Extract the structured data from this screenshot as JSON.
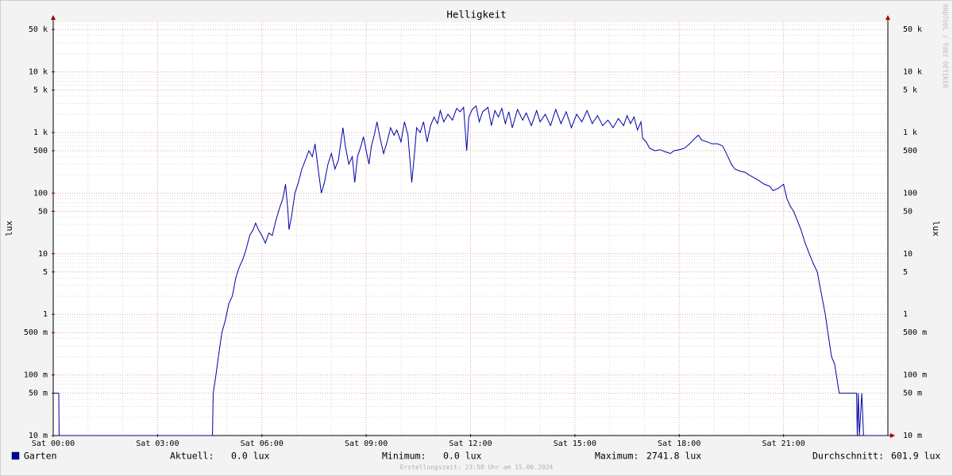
{
  "chart_data": {
    "type": "line",
    "title": "Helligkeit",
    "y_label": "lux",
    "log_y": true,
    "grid": true,
    "watermark": "RRDTOOL / TOBI OETIKER",
    "footer": "Erstellungszeit: 23:58 Uhr am 15.06.2024",
    "xlim": [
      0,
      24
    ],
    "xticks": [
      {
        "value": 0,
        "label": "Sat 00:00"
      },
      {
        "value": 3,
        "label": "Sat 03:00"
      },
      {
        "value": 6,
        "label": "Sat 06:00"
      },
      {
        "value": 9,
        "label": "Sat 09:00"
      },
      {
        "value": 12,
        "label": "Sat 12:00"
      },
      {
        "value": 15,
        "label": "Sat 15:00"
      },
      {
        "value": 18,
        "label": "Sat 18:00"
      },
      {
        "value": 21,
        "label": "Sat 21:00"
      }
    ],
    "minor_xticks": [
      1,
      2,
      4,
      5,
      7,
      8,
      10,
      11,
      13,
      14,
      16,
      17,
      19,
      20,
      22,
      23
    ],
    "ylim": [
      0.01,
      66000
    ],
    "yticks": [
      {
        "value": 0.01,
        "label": "10 m"
      },
      {
        "value": 0.05,
        "label": "50 m"
      },
      {
        "value": 0.1,
        "label": "100 m"
      },
      {
        "value": 0.5,
        "label": "500 m"
      },
      1,
      5,
      10,
      50,
      100,
      500,
      {
        "value": 1000,
        "label": "1 k"
      },
      {
        "value": 5000,
        "label": "5 k"
      },
      {
        "value": 10000,
        "label": "10 k"
      },
      {
        "value": 50000,
        "label": "50 k"
      }
    ],
    "minor_yticks": [
      0.02,
      0.03,
      0.04,
      0.06,
      0.07,
      0.08,
      0.09,
      0.2,
      0.3,
      0.4,
      0.6,
      0.7,
      0.8,
      0.9,
      2,
      3,
      4,
      6,
      7,
      8,
      9,
      20,
      30,
      40,
      60,
      70,
      80,
      90,
      200,
      300,
      400,
      600,
      700,
      800,
      900,
      2000,
      3000,
      4000,
      6000,
      7000,
      8000,
      9000,
      20000,
      30000,
      40000,
      60000
    ],
    "x": [
      0,
      0.16,
      0.17,
      4.58,
      4.6,
      4.68,
      4.75,
      4.85,
      4.95,
      5.05,
      5.15,
      5.25,
      5.35,
      5.45,
      5.55,
      5.65,
      5.75,
      5.82,
      5.9,
      6.0,
      6.1,
      6.2,
      6.3,
      6.4,
      6.5,
      6.6,
      6.68,
      6.75,
      6.78,
      6.85,
      6.95,
      7.05,
      7.15,
      7.25,
      7.35,
      7.45,
      7.53,
      7.6,
      7.71,
      7.8,
      7.9,
      8.0,
      8.1,
      8.2,
      8.33,
      8.4,
      8.5,
      8.6,
      8.67,
      8.75,
      8.85,
      8.92,
      9.0,
      9.08,
      9.15,
      9.23,
      9.31,
      9.4,
      9.5,
      9.6,
      9.7,
      9.8,
      9.88,
      10.0,
      10.1,
      10.2,
      10.31,
      10.38,
      10.45,
      10.55,
      10.65,
      10.75,
      10.85,
      10.95,
      11.05,
      11.13,
      11.23,
      11.35,
      11.48,
      11.6,
      11.7,
      11.8,
      11.89,
      11.95,
      12.05,
      12.16,
      12.25,
      12.35,
      12.5,
      12.6,
      12.7,
      12.8,
      12.9,
      13.0,
      13.1,
      13.2,
      13.35,
      13.5,
      13.6,
      13.75,
      13.9,
      14.0,
      14.15,
      14.3,
      14.45,
      14.6,
      14.75,
      14.9,
      15.05,
      15.2,
      15.35,
      15.5,
      15.65,
      15.8,
      15.95,
      16.1,
      16.25,
      16.4,
      16.5,
      16.6,
      16.7,
      16.8,
      16.9,
      16.95,
      17.05,
      17.15,
      17.3,
      17.45,
      17.6,
      17.75,
      17.85,
      18.0,
      18.15,
      18.3,
      18.45,
      18.55,
      18.65,
      18.8,
      18.95,
      19.1,
      19.25,
      19.4,
      19.5,
      19.6,
      19.75,
      19.9,
      20.0,
      20.15,
      20.3,
      20.45,
      20.6,
      20.7,
      20.85,
      21.0,
      21.1,
      21.2,
      21.29,
      21.4,
      21.5,
      21.62,
      21.74,
      21.85,
      21.97,
      22.1,
      22.2,
      22.3,
      22.38,
      22.47,
      22.6,
      23.1,
      23.12,
      23.15,
      23.18,
      23.25,
      23.3,
      24
    ],
    "series": [
      {
        "name": "Garten",
        "color": "#0000a8",
        "values": [
          0.05,
          0.05,
          0,
          0,
          0.05,
          0.1,
          0.2,
          0.5,
          0.8,
          1.5,
          2,
          4,
          6,
          8,
          12,
          20,
          25,
          32,
          25,
          20,
          15,
          22,
          20,
          35,
          55,
          80,
          140,
          50,
          25,
          40,
          100,
          150,
          250,
          350,
          500,
          400,
          650,
          300,
          100,
          150,
          300,
          450,
          250,
          350,
          1200,
          600,
          300,
          400,
          150,
          400,
          600,
          850,
          500,
          300,
          600,
          900,
          1500,
          800,
          450,
          700,
          1200,
          900,
          1100,
          700,
          1500,
          900,
          150,
          400,
          1200,
          1000,
          1500,
          700,
          1300,
          1800,
          1400,
          2300,
          1500,
          2000,
          1600,
          2500,
          2200,
          2600,
          500,
          1800,
          2400,
          2741.8,
          1500,
          2200,
          2600,
          1300,
          2300,
          1800,
          2500,
          1400,
          2200,
          1200,
          2400,
          1600,
          2100,
          1300,
          2300,
          1500,
          2000,
          1300,
          2400,
          1400,
          2200,
          1200,
          2000,
          1500,
          2300,
          1400,
          1900,
          1300,
          1600,
          1200,
          1700,
          1300,
          1900,
          1400,
          1800,
          1100,
          1500,
          800,
          700,
          550,
          500,
          520,
          480,
          450,
          500,
          520,
          550,
          650,
          800,
          900,
          750,
          700,
          650,
          650,
          600,
          400,
          300,
          250,
          230,
          220,
          200,
          180,
          160,
          140,
          130,
          110,
          120,
          140,
          80,
          60,
          50,
          35,
          25,
          15,
          10,
          7,
          5,
          2,
          1,
          0.4,
          0.2,
          0.15,
          0.05,
          0.05,
          0,
          0.05,
          0,
          0.05,
          0,
          0
        ]
      }
    ],
    "stats": [
      {
        "label": "Aktuell:",
        "value": "0.0 lux"
      },
      {
        "label": "Minimum:",
        "value": "0.0 lux"
      },
      {
        "label": "Maximum:",
        "value": "2741.8 lux"
      },
      {
        "label": "Durchschnitt:",
        "value": "601.9 lux"
      }
    ]
  }
}
